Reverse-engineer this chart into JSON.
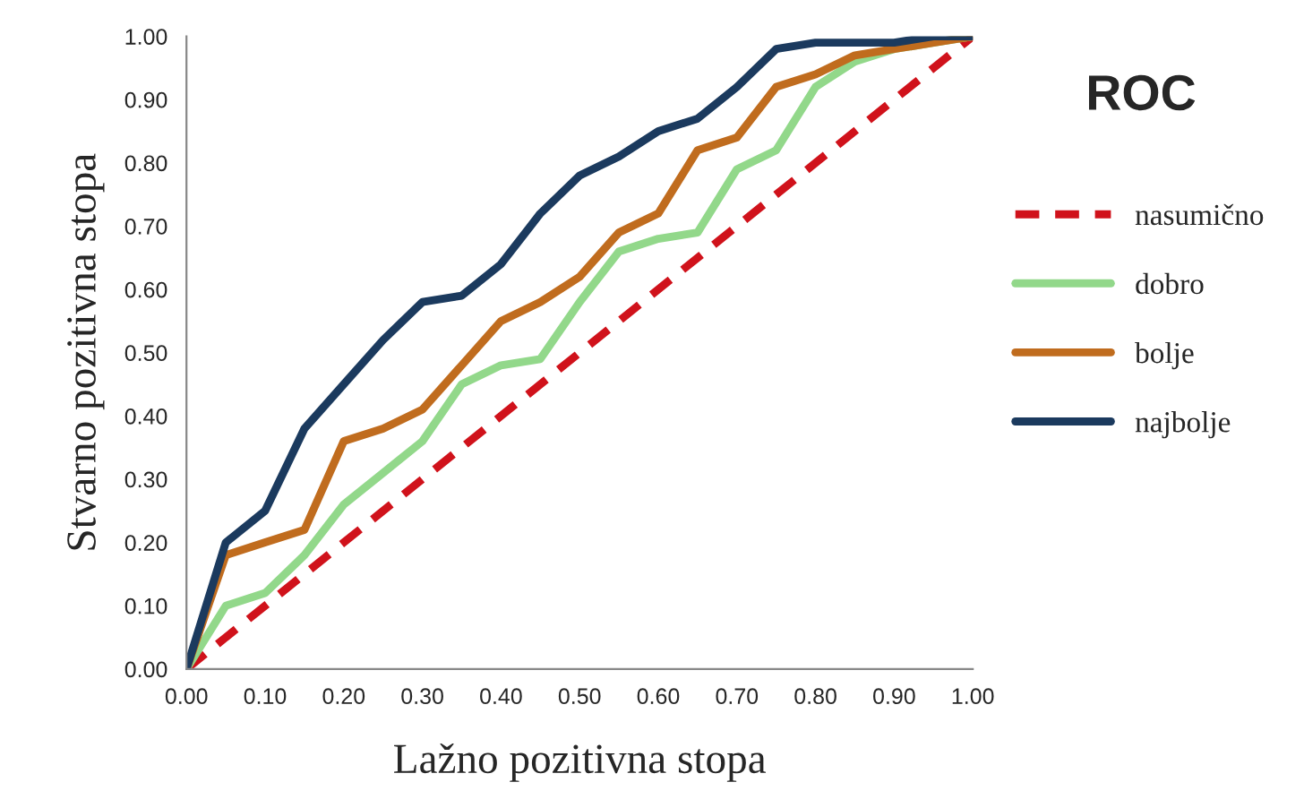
{
  "chart_data": {
    "type": "line",
    "title": "ROC",
    "xlabel": "Lažno pozitivna stopa",
    "ylabel": "Stvarno pozitivna stopa",
    "x": [
      0,
      0.05,
      0.1,
      0.15,
      0.2,
      0.25,
      0.3,
      0.35,
      0.4,
      0.45,
      0.5,
      0.55,
      0.6,
      0.65,
      0.7,
      0.75,
      0.8,
      0.85,
      0.9,
      0.95,
      1.0
    ],
    "series": [
      {
        "name": "nasumično",
        "color": "#d0121b",
        "line_style": "dashed",
        "x": [
          0,
          1.0
        ],
        "values": [
          0,
          1.0
        ]
      },
      {
        "name": "dobro",
        "color": "#92d88a",
        "values": [
          0,
          0.1,
          0.12,
          0.18,
          0.26,
          0.31,
          0.36,
          0.45,
          0.48,
          0.49,
          0.58,
          0.66,
          0.68,
          0.69,
          0.79,
          0.82,
          0.92,
          0.96,
          0.98,
          0.99,
          1.0
        ]
      },
      {
        "name": "bolje",
        "color": "#c06c1e",
        "values": [
          0,
          0.18,
          0.2,
          0.22,
          0.36,
          0.38,
          0.41,
          0.48,
          0.55,
          0.58,
          0.62,
          0.69,
          0.72,
          0.82,
          0.84,
          0.92,
          0.94,
          0.97,
          0.98,
          0.99,
          1.0
        ]
      },
      {
        "name": "najbolje",
        "color": "#1b3a5e",
        "values": [
          0,
          0.2,
          0.25,
          0.38,
          0.45,
          0.52,
          0.58,
          0.59,
          0.64,
          0.72,
          0.78,
          0.81,
          0.85,
          0.87,
          0.92,
          0.98,
          0.99,
          0.99,
          0.99,
          1.0,
          1.0
        ]
      }
    ],
    "line_style": "solid",
    "marker": "none",
    "grid": false,
    "legend": "right",
    "xlim": [
      0,
      1.0
    ],
    "ylim": [
      0,
      1.0
    ],
    "xticks": [
      {
        "value": 0,
        "label": "0.00"
      },
      {
        "value": 0.1,
        "label": "0.10"
      },
      {
        "value": 0.2,
        "label": "0.20"
      },
      {
        "value": 0.3,
        "label": "0.30"
      },
      {
        "value": 0.4,
        "label": "0.40"
      },
      {
        "value": 0.5,
        "label": "0.50"
      },
      {
        "value": 0.6,
        "label": "0.60"
      },
      {
        "value": 0.7,
        "label": "0.70"
      },
      {
        "value": 0.8,
        "label": "0.80"
      },
      {
        "value": 0.9,
        "label": "0.90"
      },
      {
        "value": 1.0,
        "label": "1.00"
      }
    ],
    "yticks": [
      {
        "value": 0,
        "label": "0.00"
      },
      {
        "value": 0.1,
        "label": "0.10"
      },
      {
        "value": 0.2,
        "label": "0.20"
      },
      {
        "value": 0.3,
        "label": "0.30"
      },
      {
        "value": 0.4,
        "label": "0.40"
      },
      {
        "value": 0.5,
        "label": "0.50"
      },
      {
        "value": 0.6,
        "label": "0.60"
      },
      {
        "value": 0.7,
        "label": "0.70"
      },
      {
        "value": 0.8,
        "label": "0.80"
      },
      {
        "value": 0.9,
        "label": "0.90"
      },
      {
        "value": 1.0,
        "label": "1.00"
      }
    ]
  }
}
